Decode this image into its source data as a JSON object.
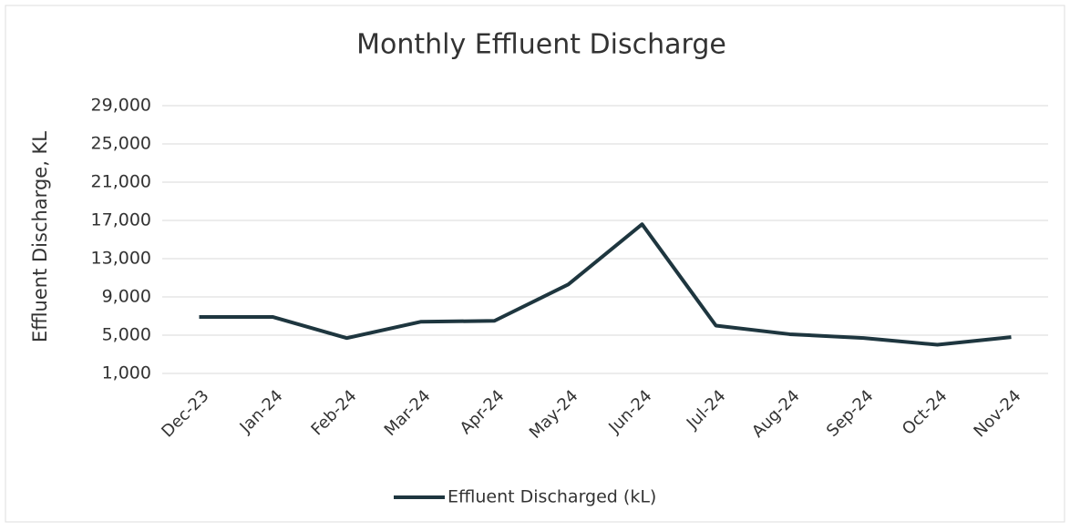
{
  "chart_data": {
    "type": "line",
    "title": "Monthly Effluent Discharge",
    "y_label": "Effluent Discharge, KL",
    "categories": [
      "Dec-23",
      "Jan-24",
      "Feb-24",
      "Mar-24",
      "Apr-24",
      "May-24",
      "Jun-24",
      "Jul-24",
      "Aug-24",
      "Sep-24",
      "Oct-24",
      "Nov-24"
    ],
    "series": [
      {
        "name": "Effluent Discharged (kL)",
        "color": "#1e363f",
        "values": [
          6900,
          6900,
          4700,
          6400,
          6500,
          10300,
          16600,
          6000,
          5100,
          4700,
          4000,
          4800
        ]
      }
    ],
    "ylim": [
      1000,
      29000
    ],
    "yticks": [
      {
        "value": 1000,
        "label": "1,000"
      },
      {
        "value": 5000,
        "label": "5,000"
      },
      {
        "value": 9000,
        "label": "9,000"
      },
      {
        "value": 13000,
        "label": "13,000"
      },
      {
        "value": 17000,
        "label": "17,000"
      },
      {
        "value": 21000,
        "label": "21,000"
      },
      {
        "value": 25000,
        "label": "25,000"
      },
      {
        "value": 29000,
        "label": "29,000"
      }
    ],
    "grid": true,
    "legend": "bottom"
  }
}
